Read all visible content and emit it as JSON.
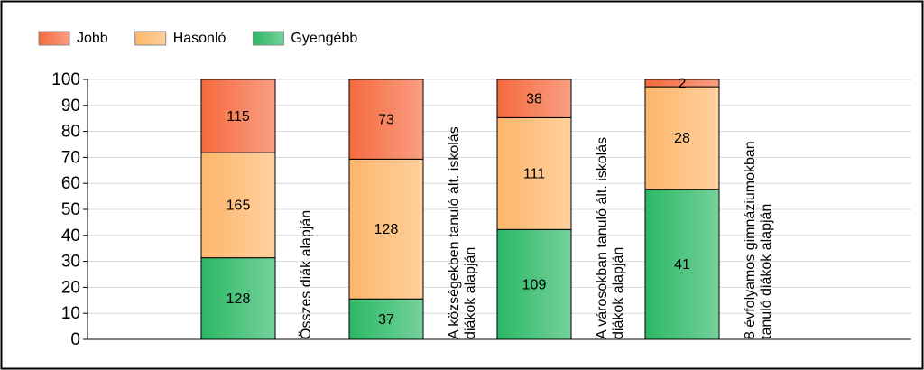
{
  "chart_data": {
    "type": "bar",
    "stacking": "percent",
    "categories": [
      "Összes diák alapján",
      "A községekben tanuló ált. iskolás diákok alapján",
      "A városokban tanuló ált. iskolás diákok alapján",
      "8 évfolyamos gimnáziumokban tanuló diákok alapján"
    ],
    "series": [
      {
        "name": "Gyengébb",
        "color": "#2bb865",
        "values": [
          128,
          37,
          109,
          41
        ]
      },
      {
        "name": "Hasonló",
        "color": "#fdb66a",
        "values": [
          165,
          128,
          111,
          28
        ]
      },
      {
        "name": "Jobb",
        "color": "#f56a3e",
        "values": [
          115,
          73,
          38,
          2
        ]
      }
    ],
    "legend_order": [
      "Jobb",
      "Hasonló",
      "Gyengébb"
    ],
    "ylim": [
      0,
      100
    ],
    "yticks": [
      0,
      10,
      20,
      30,
      40,
      50,
      60,
      70,
      80,
      90,
      100
    ],
    "grid": true,
    "legend": "top-left"
  }
}
